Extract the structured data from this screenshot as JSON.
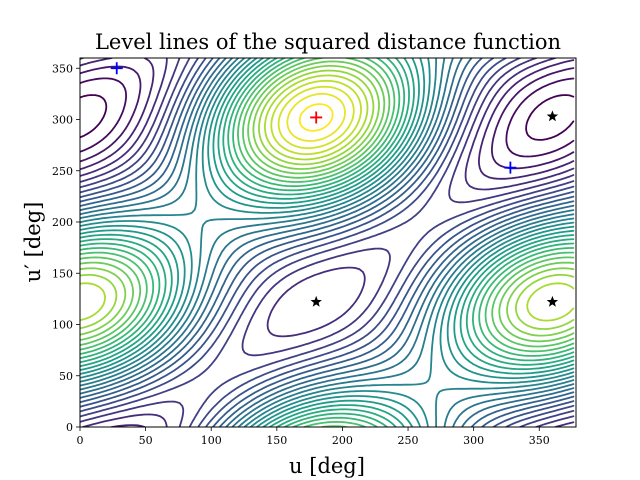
{
  "chart_data": {
    "type": "contour",
    "title": "Level lines of the squared distance function",
    "xlabel": "u [deg]",
    "ylabel": "u′ [deg]",
    "xlim": [
      0,
      378
    ],
    "ylim": [
      0,
      360
    ],
    "x_ticks": [
      0,
      50,
      100,
      150,
      200,
      250,
      300,
      350
    ],
    "y_ticks": [
      0,
      50,
      100,
      150,
      200,
      250,
      300,
      350
    ],
    "colormap": "viridis",
    "grid": false,
    "markers": [
      {
        "symbol": "plus",
        "color": "#ff0000",
        "x": 180,
        "y": 302
      },
      {
        "symbol": "plus",
        "color": "#0000ff",
        "x": 28,
        "y": 350
      },
      {
        "symbol": "plus",
        "color": "#0000ff",
        "x": 328,
        "y": 253
      },
      {
        "symbol": "star",
        "color": "#000000",
        "x": 180,
        "y": 122
      },
      {
        "symbol": "star",
        "color": "#000000",
        "x": 360,
        "y": 122
      },
      {
        "symbol": "star",
        "color": "#000000",
        "x": 360,
        "y": 303
      }
    ]
  }
}
